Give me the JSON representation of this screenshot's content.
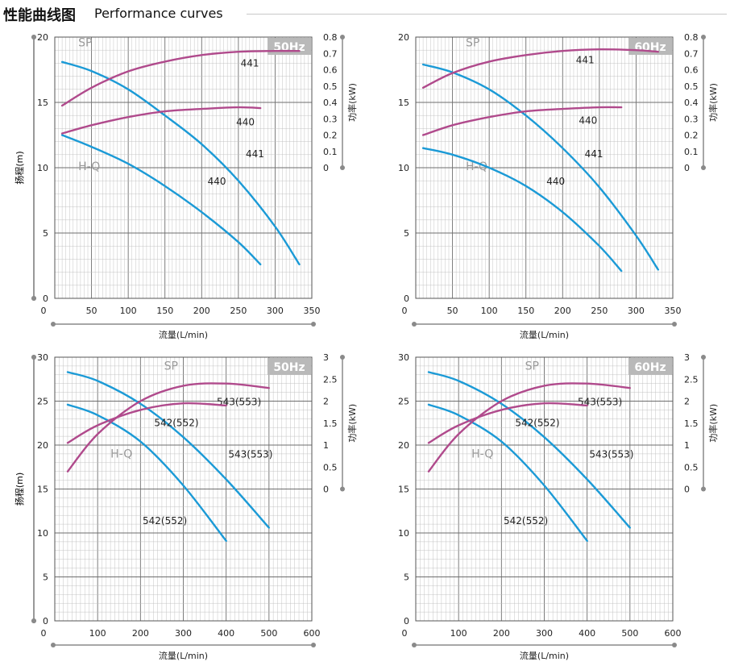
{
  "header": {
    "title_zh": "性能曲线图",
    "title_en": "Performance curves"
  },
  "colors": {
    "hq": "#1b9ad6",
    "sp": "#b04a8c",
    "grid": "#bdbdbd",
    "grid_major": "#6e6e6e",
    "badge_bg": "#b9b9b9",
    "badge_text": "#ffffff",
    "label_gray": "#999999",
    "axis_gray": "#8a8a8a"
  },
  "chart_data": [
    {
      "type": "line",
      "badge": "50Hz",
      "xlabel": "流量(L/min)",
      "ylabel": "扬程(m)",
      "y2label": "功率(kW)",
      "xlim": [
        0,
        350
      ],
      "xticks": [
        0,
        50,
        100,
        150,
        200,
        250,
        300,
        350
      ],
      "ylim": [
        0,
        20
      ],
      "yticks": [
        0,
        5,
        10,
        15,
        20
      ],
      "y2lim": [
        -0.8,
        0.8
      ],
      "y2ticks": [
        0,
        0.1,
        0.2,
        0.3,
        0.4,
        0.5,
        0.6,
        0.7,
        0.8
      ],
      "group_labels": [
        {
          "text": "SP",
          "x": 32,
          "y": 19.3
        },
        {
          "text": "H-Q",
          "x": 32,
          "y": 9.8
        }
      ],
      "series": [
        {
          "name": "441",
          "kind": "H-Q",
          "label": "441",
          "label_at": [
            260,
            10.8
          ],
          "x": [
            10,
            50,
            100,
            150,
            200,
            250,
            300,
            333
          ],
          "y": [
            18.1,
            17.4,
            16.0,
            14.0,
            11.8,
            9.0,
            5.5,
            2.6
          ]
        },
        {
          "name": "440",
          "kind": "H-Q",
          "label": "440",
          "label_at": [
            208,
            8.7
          ],
          "x": [
            10,
            50,
            100,
            150,
            200,
            250,
            280
          ],
          "y": [
            12.5,
            11.6,
            10.3,
            8.6,
            6.6,
            4.3,
            2.6
          ]
        },
        {
          "name": "441",
          "kind": "SP",
          "label": "441",
          "label_at": [
            253,
            0.62
          ],
          "x": [
            10,
            50,
            100,
            150,
            200,
            250,
            300,
            333
          ],
          "y": [
            0.38,
            0.49,
            0.59,
            0.65,
            0.69,
            0.71,
            0.715,
            0.715
          ]
        },
        {
          "name": "440",
          "kind": "SP",
          "label": "440",
          "label_at": [
            247,
            0.26
          ],
          "x": [
            10,
            50,
            100,
            150,
            200,
            250,
            280
          ],
          "y": [
            0.21,
            0.26,
            0.31,
            0.345,
            0.36,
            0.37,
            0.365
          ]
        }
      ]
    },
    {
      "type": "line",
      "badge": "60Hz",
      "xlabel": "流量(L/min)",
      "ylabel": "扬程(m)",
      "y2label": "功率(kW)",
      "xlim": [
        0,
        350
      ],
      "xticks": [
        0,
        50,
        100,
        150,
        200,
        250,
        300,
        350
      ],
      "ylim": [
        0,
        20
      ],
      "yticks": [
        0,
        5,
        10,
        15,
        20
      ],
      "y2lim": [
        -0.8,
        0.8
      ],
      "y2ticks": [
        0,
        0.1,
        0.2,
        0.3,
        0.4,
        0.5,
        0.6,
        0.7,
        0.8
      ],
      "group_labels": [
        {
          "text": "SP",
          "x": 68,
          "y": 19.3
        },
        {
          "text": "H-Q",
          "x": 68,
          "y": 9.8
        }
      ],
      "series": [
        {
          "name": "441",
          "kind": "H-Q",
          "label": "441",
          "label_at": [
            230,
            10.8
          ],
          "x": [
            10,
            50,
            100,
            150,
            200,
            250,
            300,
            330
          ],
          "y": [
            17.9,
            17.3,
            16.0,
            14.0,
            11.5,
            8.5,
            4.8,
            2.2
          ]
        },
        {
          "name": "440",
          "kind": "H-Q",
          "label": "440",
          "label_at": [
            178,
            8.7
          ],
          "x": [
            10,
            50,
            100,
            150,
            200,
            250,
            280
          ],
          "y": [
            11.5,
            11.0,
            10.0,
            8.6,
            6.6,
            4.0,
            2.1
          ]
        },
        {
          "name": "441",
          "kind": "SP",
          "label": "441",
          "label_at": [
            218,
            0.64
          ],
          "x": [
            10,
            50,
            100,
            150,
            200,
            250,
            300,
            330
          ],
          "y": [
            0.49,
            0.58,
            0.65,
            0.69,
            0.715,
            0.725,
            0.72,
            0.71
          ]
        },
        {
          "name": "440",
          "kind": "SP",
          "label": "440",
          "label_at": [
            222,
            0.27
          ],
          "x": [
            10,
            50,
            100,
            150,
            200,
            250,
            280
          ],
          "y": [
            0.2,
            0.26,
            0.31,
            0.345,
            0.36,
            0.37,
            0.37
          ]
        }
      ]
    },
    {
      "type": "line",
      "badge": "50Hz",
      "xlabel": "流量(L/min)",
      "ylabel": "扬程(m)",
      "y2label": "功率(kW)",
      "xlim": [
        0,
        600
      ],
      "xticks": [
        0,
        100,
        200,
        300,
        400,
        500,
        600
      ],
      "ylim": [
        0,
        30
      ],
      "yticks": [
        0,
        5,
        10,
        15,
        20,
        25,
        30
      ],
      "y2lim": [
        -3.0,
        3.0
      ],
      "y2ticks": [
        0,
        0.5,
        1.0,
        1.5,
        2.0,
        2.5,
        3.0
      ],
      "group_labels": [
        {
          "text": "SP",
          "x": 255,
          "y": 28.6
        },
        {
          "text": "H-Q",
          "x": 130,
          "y": 18.6
        }
      ],
      "series": [
        {
          "name": "543(553)",
          "kind": "H-Q",
          "label": "543(553)",
          "label_at": [
            405,
            18.6
          ],
          "x": [
            30,
            100,
            200,
            300,
            400,
            500
          ],
          "y": [
            28.3,
            27.3,
            24.7,
            20.9,
            16.1,
            10.6
          ]
        },
        {
          "name": "542(552)",
          "kind": "H-Q",
          "label": "542(552)",
          "label_at": [
            205,
            11.0
          ],
          "x": [
            30,
            100,
            200,
            300,
            400
          ],
          "y": [
            24.6,
            23.4,
            20.4,
            15.4,
            9.1
          ]
        },
        {
          "name": "543(553)",
          "kind": "SP",
          "label": "543(553)",
          "label_at": [
            378,
            1.91
          ],
          "x": [
            30,
            100,
            200,
            300,
            400,
            500
          ],
          "y": [
            0.4,
            1.25,
            2.0,
            2.35,
            2.4,
            2.3
          ]
        },
        {
          "name": "542(552)",
          "kind": "SP",
          "label": "542(552)",
          "label_at": [
            232,
            1.43
          ],
          "x": [
            30,
            100,
            200,
            300,
            400
          ],
          "y": [
            1.05,
            1.45,
            1.8,
            1.95,
            1.9
          ]
        }
      ]
    },
    {
      "type": "line",
      "badge": "60Hz",
      "xlabel": "流量(L/min)",
      "ylabel": "扬程(m)",
      "y2label": "功率(kW)",
      "xlim": [
        0,
        600
      ],
      "xticks": [
        0,
        100,
        200,
        300,
        400,
        500,
        600
      ],
      "ylim": [
        0,
        30
      ],
      "yticks": [
        0,
        5,
        10,
        15,
        20,
        25,
        30
      ],
      "y2lim": [
        -3.0,
        3.0
      ],
      "y2ticks": [
        0,
        0.5,
        1.0,
        1.5,
        2.0,
        2.5,
        3.0
      ],
      "group_labels": [
        {
          "text": "SP",
          "x": 255,
          "y": 28.6
        },
        {
          "text": "H-Q",
          "x": 130,
          "y": 18.6
        }
      ],
      "series": [
        {
          "name": "543(553)",
          "kind": "H-Q",
          "label": "543(553)",
          "label_at": [
            405,
            18.6
          ],
          "x": [
            30,
            100,
            200,
            300,
            400,
            500
          ],
          "y": [
            28.3,
            27.3,
            24.7,
            20.9,
            16.1,
            10.6
          ]
        },
        {
          "name": "542(552)",
          "kind": "H-Q",
          "label": "542(552)",
          "label_at": [
            205,
            11.0
          ],
          "x": [
            30,
            100,
            200,
            300,
            400
          ],
          "y": [
            24.6,
            23.4,
            20.4,
            15.4,
            9.1
          ]
        },
        {
          "name": "543(553)",
          "kind": "SP",
          "label": "543(553)",
          "label_at": [
            378,
            1.91
          ],
          "x": [
            30,
            100,
            200,
            300,
            400,
            500
          ],
          "y": [
            0.4,
            1.25,
            2.0,
            2.35,
            2.4,
            2.3
          ]
        },
        {
          "name": "542(552)",
          "kind": "SP",
          "label": "542(552)",
          "label_at": [
            232,
            1.43
          ],
          "x": [
            30,
            100,
            200,
            300,
            400
          ],
          "y": [
            1.05,
            1.45,
            1.8,
            1.95,
            1.9
          ]
        }
      ]
    }
  ]
}
